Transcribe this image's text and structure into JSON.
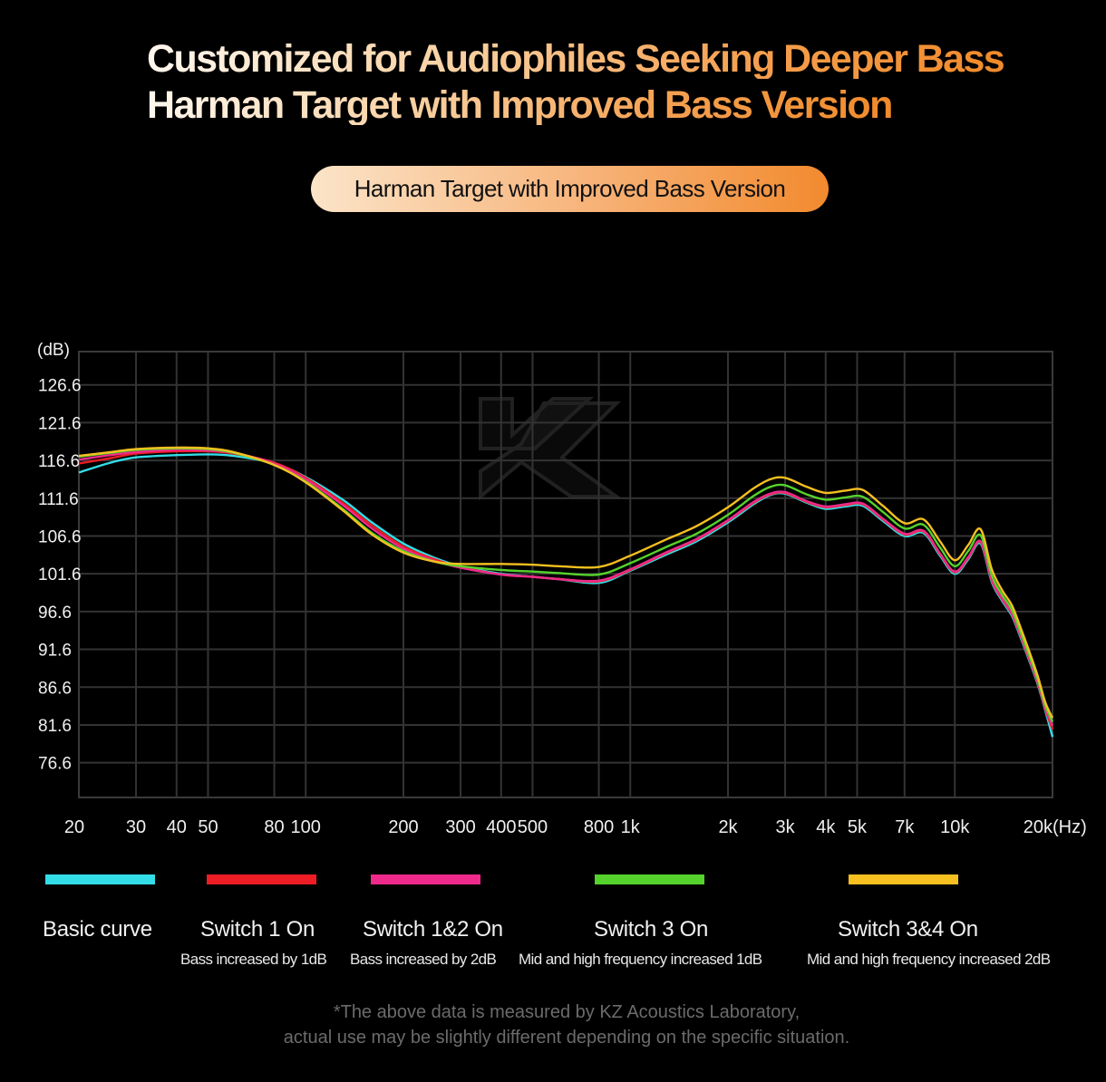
{
  "headline": {
    "line1": "Customized for Audiophiles Seeking Deeper Bass",
    "line2": "Harman Target with Improved Bass Version"
  },
  "badge_label": "Harman Target with Improved Bass Version",
  "watermark_logo": "KZ",
  "chart_data": {
    "type": "line",
    "title": "Harman Target with Improved Bass Version",
    "ylabel": "(dB)",
    "xlabel": "(Hz)",
    "xscale": "log",
    "xlim": [
      20,
      20000
    ],
    "ylim": [
      72,
      131
    ],
    "y_ticks": [
      126.6,
      121.6,
      116.6,
      111.6,
      106.6,
      101.6,
      96.6,
      91.6,
      86.6,
      81.6,
      76.6
    ],
    "x_ticks": [
      {
        "value": 20,
        "label": "20"
      },
      {
        "value": 30,
        "label": "30"
      },
      {
        "value": 40,
        "label": "40"
      },
      {
        "value": 50,
        "label": "50"
      },
      {
        "value": 80,
        "label": "80"
      },
      {
        "value": 100,
        "label": "100"
      },
      {
        "value": 200,
        "label": "200"
      },
      {
        "value": 300,
        "label": "300"
      },
      {
        "value": 400,
        "label": "400"
      },
      {
        "value": 500,
        "label": "500"
      },
      {
        "value": 800,
        "label": "800"
      },
      {
        "value": 1000,
        "label": "1k"
      },
      {
        "value": 2000,
        "label": "2k"
      },
      {
        "value": 3000,
        "label": "3k"
      },
      {
        "value": 4000,
        "label": "4k"
      },
      {
        "value": 5000,
        "label": "5k"
      },
      {
        "value": 7000,
        "label": "7k"
      },
      {
        "value": 10000,
        "label": "10k"
      },
      {
        "value": 20000,
        "label": "20k"
      }
    ],
    "grid": true,
    "x": [
      20,
      25,
      30,
      40,
      50,
      60,
      80,
      100,
      130,
      160,
      200,
      250,
      300,
      400,
      500,
      600,
      800,
      1000,
      1300,
      1600,
      2000,
      2400,
      2700,
      3000,
      3500,
      4000,
      4600,
      5200,
      6000,
      7000,
      8000,
      9000,
      10000,
      11000,
      12000,
      13000,
      14000,
      15000,
      16000,
      17000,
      18000,
      19000,
      20000
    ],
    "series": [
      {
        "name": "Basic curve",
        "color": "#33dde8",
        "values": [
          115.0,
          116.3,
          117.0,
          117.3,
          117.4,
          117.2,
          116.2,
          114.4,
          111.4,
          108.4,
          105.6,
          103.7,
          102.6,
          101.6,
          101.2,
          100.9,
          100.4,
          102.0,
          104.2,
          105.9,
          108.4,
          110.8,
          112.0,
          112.2,
          111.0,
          110.2,
          110.5,
          110.6,
          108.6,
          106.6,
          107.0,
          104.0,
          101.6,
          103.5,
          105.6,
          100.5,
          98.0,
          96.0,
          93.0,
          90.0,
          87.0,
          83.5,
          80.0
        ]
      },
      {
        "name": "Switch 1 On",
        "sub": "Bass increased by 1dB",
        "color": "#ee1c24",
        "values": [
          116.2,
          116.9,
          117.5,
          117.8,
          117.8,
          117.5,
          116.3,
          114.3,
          111.0,
          108.0,
          105.2,
          103.5,
          102.5,
          101.5,
          101.2,
          100.9,
          100.6,
          102.1,
          104.4,
          106.1,
          108.6,
          111.0,
          112.1,
          112.3,
          111.1,
          110.4,
          110.7,
          110.8,
          108.8,
          106.8,
          107.2,
          104.2,
          101.8,
          103.7,
          105.8,
          100.7,
          98.2,
          96.2,
          93.2,
          90.2,
          87.2,
          83.7,
          81.0
        ]
      },
      {
        "name": "Switch 1&2 On",
        "sub": "Bass increased by 2dB",
        "color": "#ee2a8a",
        "values": [
          116.7,
          117.3,
          117.7,
          118.0,
          117.9,
          117.6,
          116.2,
          114.1,
          110.7,
          107.6,
          104.9,
          103.3,
          102.4,
          101.5,
          101.2,
          100.9,
          100.7,
          102.2,
          104.5,
          106.2,
          108.7,
          111.1,
          112.2,
          112.4,
          111.2,
          110.5,
          110.8,
          110.9,
          108.9,
          106.9,
          107.3,
          104.3,
          101.9,
          103.8,
          105.9,
          100.8,
          98.3,
          96.3,
          93.3,
          90.3,
          87.3,
          83.8,
          81.5
        ]
      },
      {
        "name": "Switch 3 On",
        "sub": "Mid and high frequency increased 1dB",
        "color": "#55d22c",
        "values": [
          117.1,
          117.6,
          118.0,
          118.2,
          118.1,
          117.6,
          116.0,
          113.8,
          110.2,
          107.0,
          104.6,
          103.2,
          102.6,
          102.1,
          101.9,
          101.7,
          101.5,
          103.0,
          105.2,
          106.9,
          109.4,
          111.9,
          113.1,
          113.3,
          112.1,
          111.4,
          111.7,
          111.8,
          109.8,
          107.6,
          108.1,
          105.1,
          102.6,
          104.6,
          106.7,
          101.4,
          98.8,
          96.8,
          93.7,
          90.7,
          87.7,
          84.2,
          82.0
        ]
      },
      {
        "name": "Switch 3&4 On",
        "sub": "Mid and high frequency increased 2dB",
        "color": "#f5c020",
        "values": [
          117.2,
          117.7,
          118.1,
          118.3,
          118.2,
          117.7,
          116.0,
          113.7,
          110.0,
          106.8,
          104.4,
          103.2,
          102.9,
          102.9,
          102.8,
          102.6,
          102.5,
          104.0,
          106.2,
          107.9,
          110.4,
          112.9,
          114.1,
          114.3,
          113.1,
          112.3,
          112.6,
          112.7,
          110.6,
          108.3,
          108.8,
          105.9,
          103.4,
          105.4,
          107.5,
          102.2,
          99.4,
          97.4,
          94.3,
          91.2,
          88.1,
          84.6,
          82.5
        ]
      }
    ]
  },
  "footnote": {
    "line1": "*The above data is measured by KZ Acoustics Laboratory,",
    "line2": "actual use may be slightly different depending on the specific situation."
  }
}
